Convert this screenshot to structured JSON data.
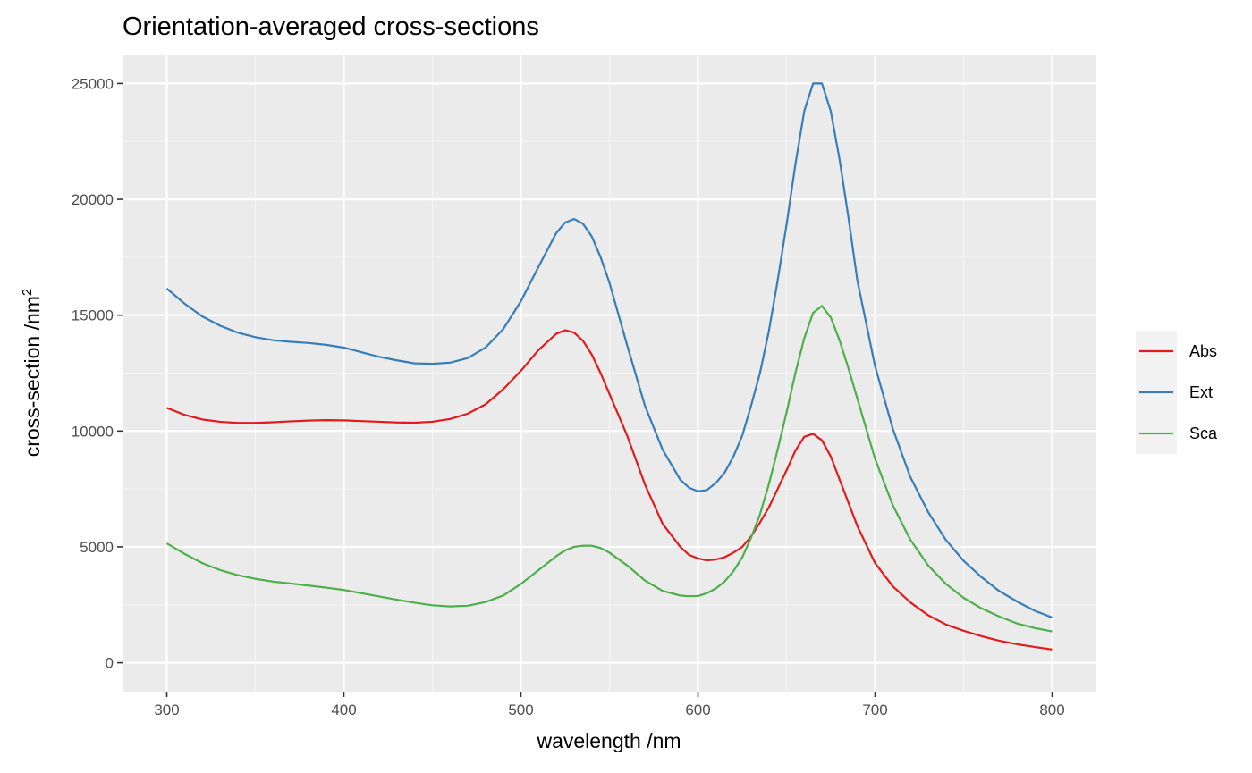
{
  "chart_data": {
    "type": "line",
    "title": "Orientation-averaged cross-sections",
    "xlabel": "wavelength /nm",
    "ylabel": "cross-section /nm",
    "ylabel_superscript": "2",
    "xlim": [
      275,
      825
    ],
    "ylim": [
      -1250,
      26250
    ],
    "x_ticks": [
      300,
      400,
      500,
      600,
      700,
      800
    ],
    "y_ticks": [
      0,
      5000,
      10000,
      15000,
      20000,
      25000
    ],
    "grid": true,
    "legend_position": "right",
    "x": [
      300,
      310,
      320,
      330,
      340,
      350,
      360,
      370,
      380,
      390,
      400,
      410,
      420,
      430,
      440,
      450,
      460,
      470,
      480,
      490,
      500,
      510,
      520,
      525,
      530,
      535,
      540,
      545,
      550,
      560,
      570,
      580,
      590,
      595,
      600,
      605,
      610,
      615,
      620,
      625,
      630,
      635,
      640,
      645,
      650,
      655,
      660,
      665,
      670,
      675,
      680,
      685,
      690,
      700,
      710,
      720,
      730,
      740,
      750,
      760,
      770,
      780,
      790,
      800
    ],
    "series": [
      {
        "name": "Abs",
        "color": "#e41a1c",
        "values": [
          11000,
          10700,
          10500,
          10400,
          10350,
          10350,
          10380,
          10420,
          10450,
          10470,
          10460,
          10430,
          10400,
          10370,
          10360,
          10400,
          10520,
          10750,
          11150,
          11800,
          12600,
          13500,
          14200,
          14350,
          14250,
          13900,
          13300,
          12500,
          11600,
          9800,
          7700,
          6000,
          5000,
          4650,
          4500,
          4420,
          4450,
          4550,
          4750,
          5000,
          5450,
          6050,
          6700,
          7500,
          8300,
          9150,
          9750,
          9880,
          9600,
          8900,
          7900,
          6900,
          5900,
          4300,
          3300,
          2600,
          2050,
          1650,
          1380,
          1150,
          950,
          800,
          680,
          570
        ]
      },
      {
        "name": "Ext",
        "color": "#377eb8",
        "values": [
          16150,
          15500,
          14950,
          14550,
          14250,
          14050,
          13920,
          13850,
          13800,
          13720,
          13600,
          13400,
          13200,
          13050,
          12920,
          12900,
          12950,
          13150,
          13600,
          14400,
          15600,
          17100,
          18550,
          19000,
          19150,
          18950,
          18400,
          17500,
          16400,
          13700,
          11100,
          9200,
          7900,
          7550,
          7400,
          7450,
          7750,
          8200,
          8900,
          9800,
          11100,
          12500,
          14300,
          16500,
          18900,
          21500,
          23800,
          25000,
          25000,
          23800,
          21700,
          19200,
          16500,
          12800,
          10100,
          8000,
          6500,
          5300,
          4400,
          3700,
          3100,
          2650,
          2250,
          1950
        ]
      },
      {
        "name": "Sca",
        "color": "#4daf4a",
        "values": [
          5150,
          4700,
          4300,
          4000,
          3780,
          3620,
          3500,
          3420,
          3330,
          3240,
          3140,
          3000,
          2860,
          2720,
          2590,
          2480,
          2430,
          2460,
          2620,
          2900,
          3400,
          4000,
          4600,
          4850,
          5000,
          5050,
          5050,
          4950,
          4750,
          4200,
          3550,
          3100,
          2900,
          2870,
          2880,
          3000,
          3200,
          3500,
          3950,
          4550,
          5400,
          6400,
          7700,
          9200,
          10800,
          12500,
          14000,
          15100,
          15400,
          14900,
          13900,
          12700,
          11400,
          8800,
          6800,
          5300,
          4200,
          3400,
          2800,
          2350,
          2000,
          1700,
          1500,
          1350
        ]
      }
    ]
  }
}
